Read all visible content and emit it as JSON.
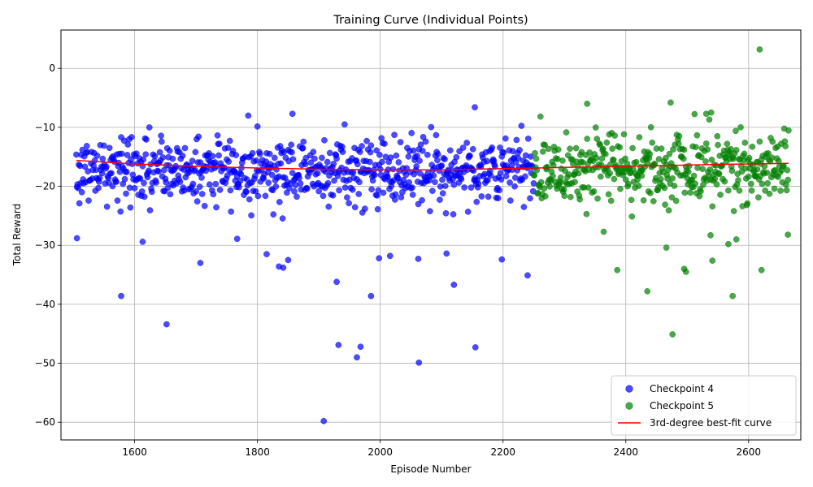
{
  "chart_data": {
    "type": "scatter",
    "title": "Training Curve (Individual Points)",
    "xlabel": "Episode Number",
    "ylabel": "Total Reward",
    "xlim": [
      1480,
      2685
    ],
    "ylim": [
      -63,
      6.5
    ],
    "xticks": [
      1600,
      1800,
      2000,
      2200,
      2400,
      2600
    ],
    "yticks": [
      0,
      -10,
      -20,
      -30,
      -40,
      -50,
      -60
    ],
    "grid": true,
    "legend_position": "lower-right",
    "series": [
      {
        "name": "Checkpoint 4",
        "kind": "scatter",
        "color": "#0000ff",
        "x_range": [
          1505,
          2250
        ],
        "typical_y_range": [
          -24,
          -9
        ],
        "outliers": [
          {
            "x": 1506,
            "y": -28.8
          },
          {
            "x": 1578,
            "y": -38.6
          },
          {
            "x": 1613,
            "y": -29.4
          },
          {
            "x": 1652,
            "y": -43.4
          },
          {
            "x": 1707,
            "y": -33.0
          },
          {
            "x": 1767,
            "y": -28.9
          },
          {
            "x": 1815,
            "y": -31.5
          },
          {
            "x": 1835,
            "y": -33.6
          },
          {
            "x": 1842,
            "y": -33.8
          },
          {
            "x": 1850,
            "y": -32.5
          },
          {
            "x": 1857,
            "y": -7.7
          },
          {
            "x": 1908,
            "y": -59.8
          },
          {
            "x": 1929,
            "y": -36.2
          },
          {
            "x": 1932,
            "y": -46.9
          },
          {
            "x": 1962,
            "y": -49.0
          },
          {
            "x": 1968,
            "y": -47.2
          },
          {
            "x": 1985,
            "y": -38.6
          },
          {
            "x": 1998,
            "y": -32.2
          },
          {
            "x": 2016,
            "y": -31.8
          },
          {
            "x": 2062,
            "y": -32.3
          },
          {
            "x": 2063,
            "y": -49.9
          },
          {
            "x": 2108,
            "y": -31.4
          },
          {
            "x": 2120,
            "y": -36.7
          },
          {
            "x": 2154,
            "y": -6.6
          },
          {
            "x": 2155,
            "y": -47.3
          },
          {
            "x": 2198,
            "y": -32.4
          },
          {
            "x": 2240,
            "y": -35.1
          }
        ]
      },
      {
        "name": "Checkpoint 5",
        "kind": "scatter",
        "color": "#008000",
        "x_range": [
          2250,
          2665
        ],
        "typical_y_range": [
          -24,
          -8
        ],
        "outliers": [
          {
            "x": 2337,
            "y": -6.0
          },
          {
            "x": 2364,
            "y": -27.7
          },
          {
            "x": 2386,
            "y": -34.2
          },
          {
            "x": 2435,
            "y": -37.8
          },
          {
            "x": 2466,
            "y": -30.4
          },
          {
            "x": 2473,
            "y": -5.8
          },
          {
            "x": 2476,
            "y": -45.1
          },
          {
            "x": 2495,
            "y": -34.0
          },
          {
            "x": 2498,
            "y": -34.5
          },
          {
            "x": 2531,
            "y": -7.7
          },
          {
            "x": 2538,
            "y": -28.3
          },
          {
            "x": 2541,
            "y": -32.6
          },
          {
            "x": 2567,
            "y": -29.8
          },
          {
            "x": 2574,
            "y": -38.6
          },
          {
            "x": 2580,
            "y": -29.0
          },
          {
            "x": 2618,
            "y": 3.2
          },
          {
            "x": 2621,
            "y": -34.2
          },
          {
            "x": 2664,
            "y": -28.2
          }
        ]
      },
      {
        "name": "3rd-degree best-fit curve",
        "kind": "line",
        "color": "#ff0000",
        "x": [
          1505,
          1600,
          1700,
          1800,
          1900,
          2000,
          2100,
          2200,
          2300,
          2400,
          2500,
          2600,
          2665
        ],
        "y": [
          -15.6,
          -16.2,
          -16.6,
          -16.9,
          -17.1,
          -17.2,
          -17.2,
          -17.0,
          -16.8,
          -16.6,
          -16.4,
          -16.2,
          -16.1
        ]
      }
    ]
  }
}
